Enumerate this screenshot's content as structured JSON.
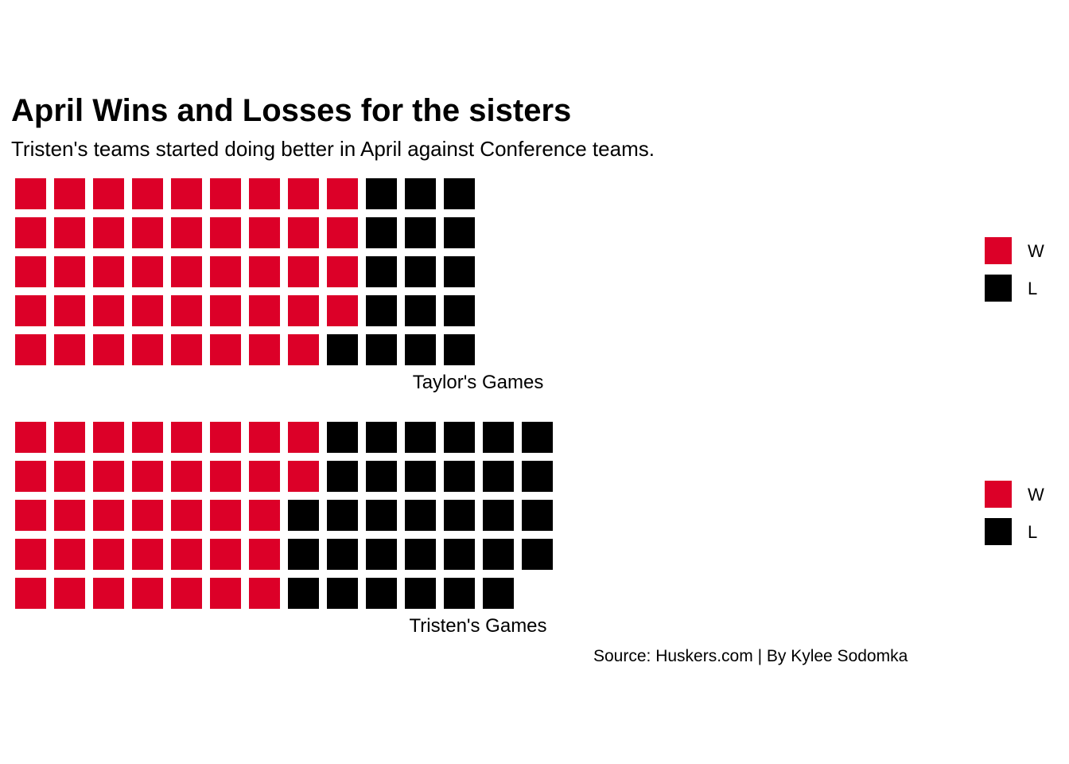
{
  "title": "April Wins and Losses for the sisters",
  "subtitle": "Tristen's teams started doing better in April against Conference teams.",
  "caption": "Source: Huskers.com | By Kylee Sodomka",
  "colors": {
    "W": "#DC0028",
    "L": "#000000"
  },
  "chart_data": [
    {
      "type": "waffle",
      "xlabel": "Taylor's Games",
      "rows": 5,
      "legend": [
        "W",
        "L"
      ],
      "legend_position": "right",
      "series": [
        {
          "name": "W",
          "values": [
            44
          ]
        },
        {
          "name": "L",
          "values": [
            16
          ]
        }
      ]
    },
    {
      "type": "waffle",
      "xlabel": "Tristen's Games",
      "rows": 5,
      "legend": [
        "W",
        "L"
      ],
      "legend_position": "right",
      "series": [
        {
          "name": "W",
          "values": [
            37
          ]
        },
        {
          "name": "L",
          "values": [
            32
          ]
        }
      ]
    }
  ]
}
